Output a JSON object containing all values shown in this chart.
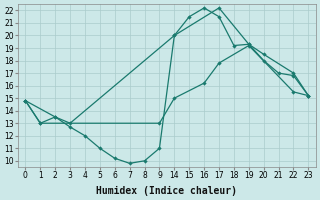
{
  "xlabel": "Humidex (Indice chaleur)",
  "xlim": [
    -0.5,
    23.5
  ],
  "ylim": [
    9.5,
    22.5
  ],
  "xticks": [
    0,
    1,
    2,
    3,
    4,
    5,
    6,
    7,
    8,
    9,
    14,
    15,
    16,
    17,
    18,
    19,
    20,
    21,
    22,
    23
  ],
  "yticks": [
    10,
    11,
    12,
    13,
    14,
    15,
    16,
    17,
    18,
    19,
    20,
    21,
    22
  ],
  "background_color": "#cce8e8",
  "grid_color": "#aacccc",
  "line_color": "#1a7a6e",
  "lines": [
    {
      "x": [
        0,
        1,
        2,
        3,
        4,
        5,
        6,
        7,
        8,
        9,
        14,
        15,
        16,
        17,
        18,
        19,
        20,
        21,
        22,
        23
      ],
      "y": [
        14.8,
        13.0,
        13.5,
        12.7,
        12.0,
        11.0,
        10.2,
        9.8,
        10.0,
        11.0,
        20.0,
        21.5,
        22.2,
        21.5,
        19.2,
        19.3,
        18.0,
        17.0,
        16.8,
        15.2
      ]
    },
    {
      "x": [
        0,
        2,
        3,
        14,
        17,
        19,
        20,
        22,
        23
      ],
      "y": [
        14.8,
        13.5,
        13.0,
        20.0,
        22.2,
        19.3,
        18.5,
        17.0,
        15.2
      ]
    },
    {
      "x": [
        0,
        1,
        9,
        14,
        16,
        17,
        19,
        22,
        23
      ],
      "y": [
        14.8,
        13.0,
        13.0,
        15.0,
        16.2,
        17.8,
        19.2,
        15.5,
        15.2
      ]
    }
  ]
}
